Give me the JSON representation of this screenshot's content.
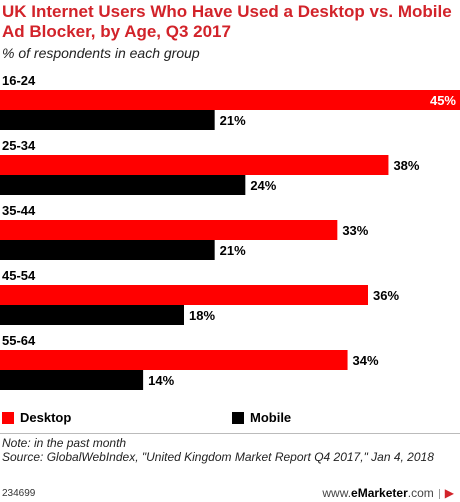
{
  "header": {
    "title": "UK Internet Users Who Have Used a Desktop vs. Mobile Ad Blocker, by Age, Q3 2017",
    "subtitle": "% of respondents in each group"
  },
  "chart_data": {
    "type": "bar",
    "orientation": "horizontal",
    "categories": [
      "16-24",
      "25-34",
      "35-44",
      "45-54",
      "55-64"
    ],
    "series": [
      {
        "name": "Desktop",
        "color": "#ff0000",
        "values": [
          45,
          38,
          33,
          36,
          34
        ]
      },
      {
        "name": "Mobile",
        "color": "#000000",
        "values": [
          21,
          24,
          21,
          18,
          14
        ]
      }
    ],
    "value_suffix": "%",
    "xlim": [
      0,
      45
    ],
    "grid": false,
    "legend_position": "bottom-left"
  },
  "legend": {
    "desktop_label": "Desktop",
    "mobile_label": "Mobile"
  },
  "footer": {
    "note": "Note: in the past month",
    "source": "Source: GlobalWebIndex, \"United Kingdom Market Report Q4 2017,\" Jan 4, 2018",
    "code": "234699",
    "brand_prefix": "www.",
    "brand_name": "eMarketer",
    "brand_suffix": ".com"
  }
}
